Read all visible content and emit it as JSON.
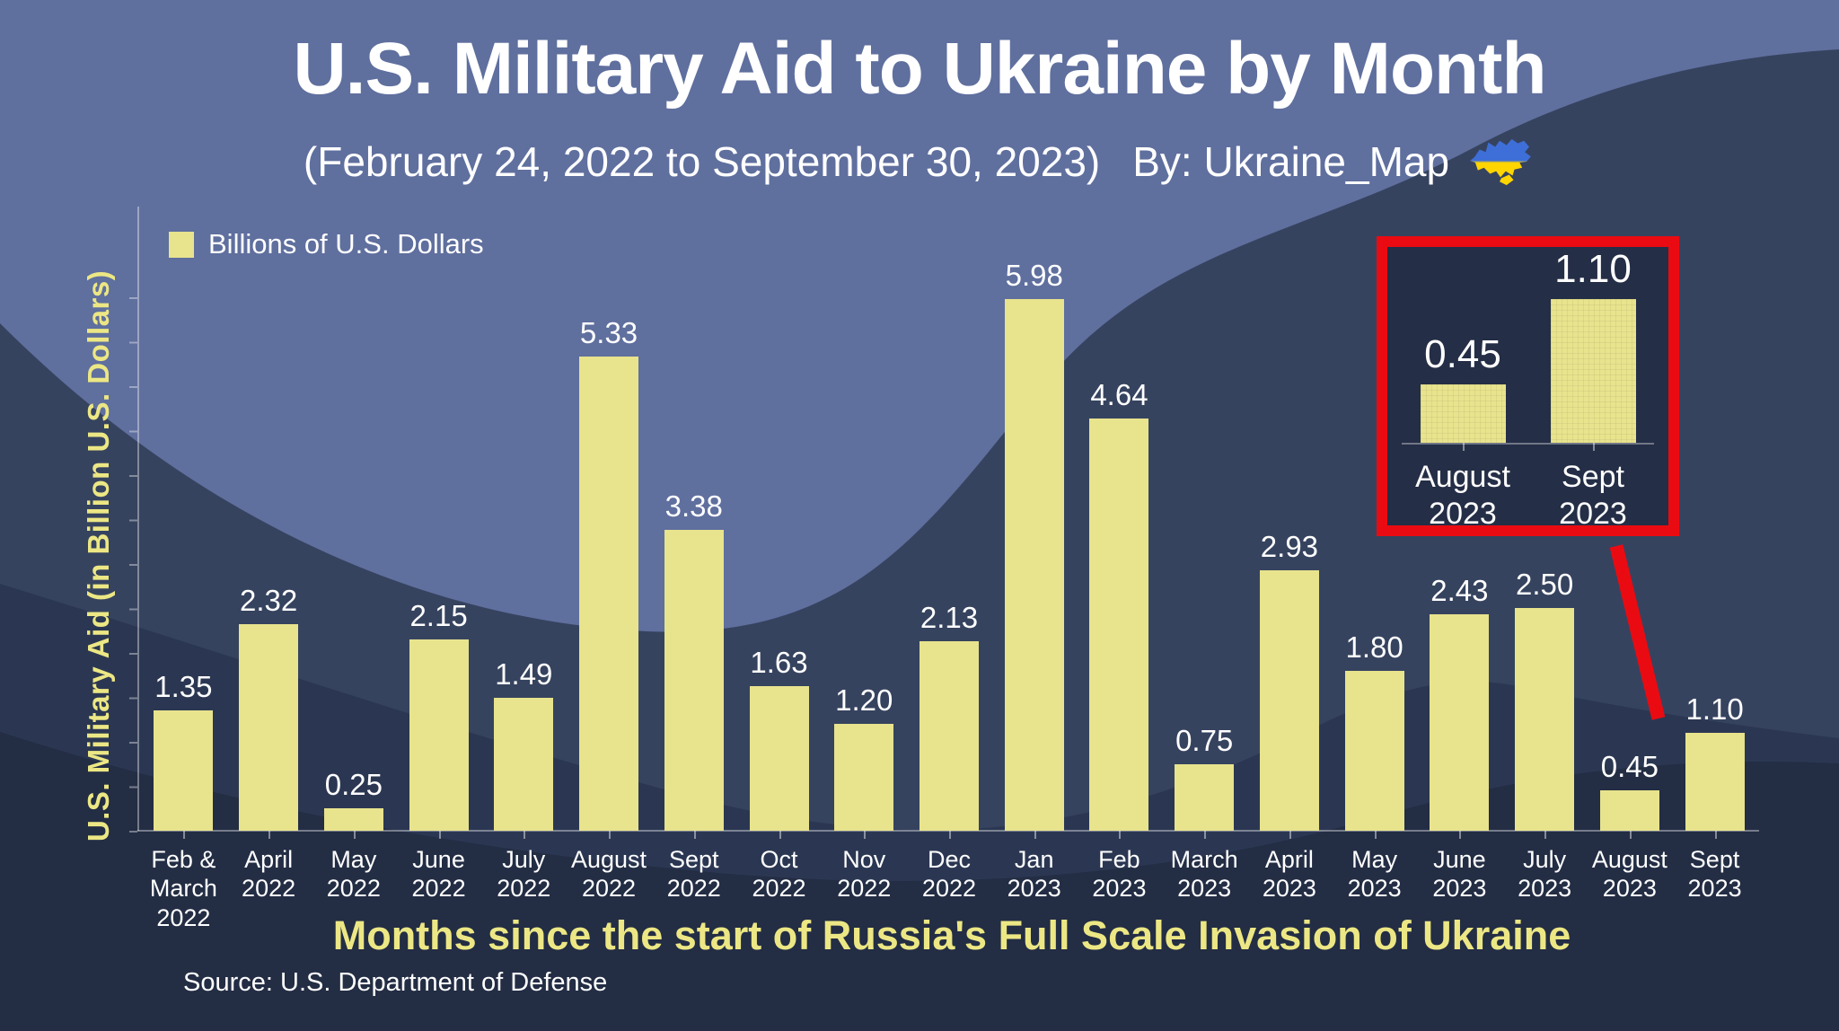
{
  "header": {
    "title": "U.S. Military Aid to Ukraine by Month",
    "subtitle": "(February 24, 2022 to September 30, 2023)",
    "byline": "By: Ukraine_Map"
  },
  "legend": {
    "label": "Billions of U.S. Dollars"
  },
  "axes": {
    "y_label": "U.S. Military Aid (in Billion U.S. Dollars)",
    "x_title": "Months since the start of Russia's Full Scale Invasion of Ukraine"
  },
  "footer": {
    "source": "Source: U.S. Department of Defense"
  },
  "icons": {
    "byline_flag": "ukraine-map-flag-icon"
  },
  "colors": {
    "background_top": "#5f6f9e",
    "wave_mid": "#36435f",
    "wave_dark": "#2b3752",
    "wave_darkest": "#232d44",
    "bar": "#e8e38d",
    "accent_yellow": "#ece784",
    "red": "#ea0b12",
    "text": "#ffffff",
    "flag_blue": "#3e6fd8",
    "flag_yellow": "#ffd500"
  },
  "chart_data": [
    {
      "type": "bar",
      "title": "U.S. Military Aid to Ukraine by Month",
      "subtitle": "(February 24, 2022 to September 30, 2023)",
      "unit": "Billions of U.S. Dollars",
      "xlabel": "Months since the start of Russia's Full Scale Invasion of Ukraine",
      "ylabel": "U.S. Military Aid (in Billion U.S. Dollars)",
      "ylim": [
        0,
        6
      ],
      "grid": false,
      "legend_position": "top-left",
      "categories": [
        "Feb & March 2022",
        "April 2022",
        "May 2022",
        "June 2022",
        "July 2022",
        "August 2022",
        "Sept 2022",
        "Oct 2022",
        "Nov 2022",
        "Dec 2022",
        "Jan 2023",
        "Feb 2023",
        "March 2023",
        "April 2023",
        "May 2023",
        "June 2023",
        "July 2023",
        "August 2023",
        "Sept 2023"
      ],
      "category_lines": [
        "Feb &\nMarch\n2022",
        "April\n2022",
        "May\n2022",
        "June\n2022",
        "July\n2022",
        "August\n2022",
        "Sept\n2022",
        "Oct\n2022",
        "Nov\n2022",
        "Dec\n2022",
        "Jan\n2023",
        "Feb\n2023",
        "March\n2023",
        "April\n2023",
        "May\n2023",
        "June\n2023",
        "July\n2023",
        "August\n2023",
        "Sept\n2023"
      ],
      "values": [
        1.35,
        2.32,
        0.25,
        2.15,
        1.49,
        5.33,
        3.38,
        1.63,
        1.2,
        2.13,
        5.98,
        4.64,
        0.75,
        2.93,
        1.8,
        2.43,
        2.5,
        0.45,
        1.1
      ],
      "value_labels": [
        "1.35",
        "2.32",
        "0.25",
        "2.15",
        "1.49",
        "5.33",
        "3.38",
        "1.63",
        "1.20",
        "2.13",
        "5.98",
        "4.64",
        "0.75",
        "2.93",
        "1.80",
        "2.43",
        "2.50",
        "0.45",
        "1.10"
      ]
    },
    {
      "type": "bar",
      "title": "",
      "note": "red-framed inset magnifying the last two months",
      "categories": [
        "August 2023",
        "Sept 2023"
      ],
      "category_lines": [
        "August\n2023",
        "Sept\n2023"
      ],
      "values": [
        0.45,
        1.1
      ],
      "value_labels": [
        "0.45",
        "1.10"
      ],
      "grid": false
    }
  ]
}
